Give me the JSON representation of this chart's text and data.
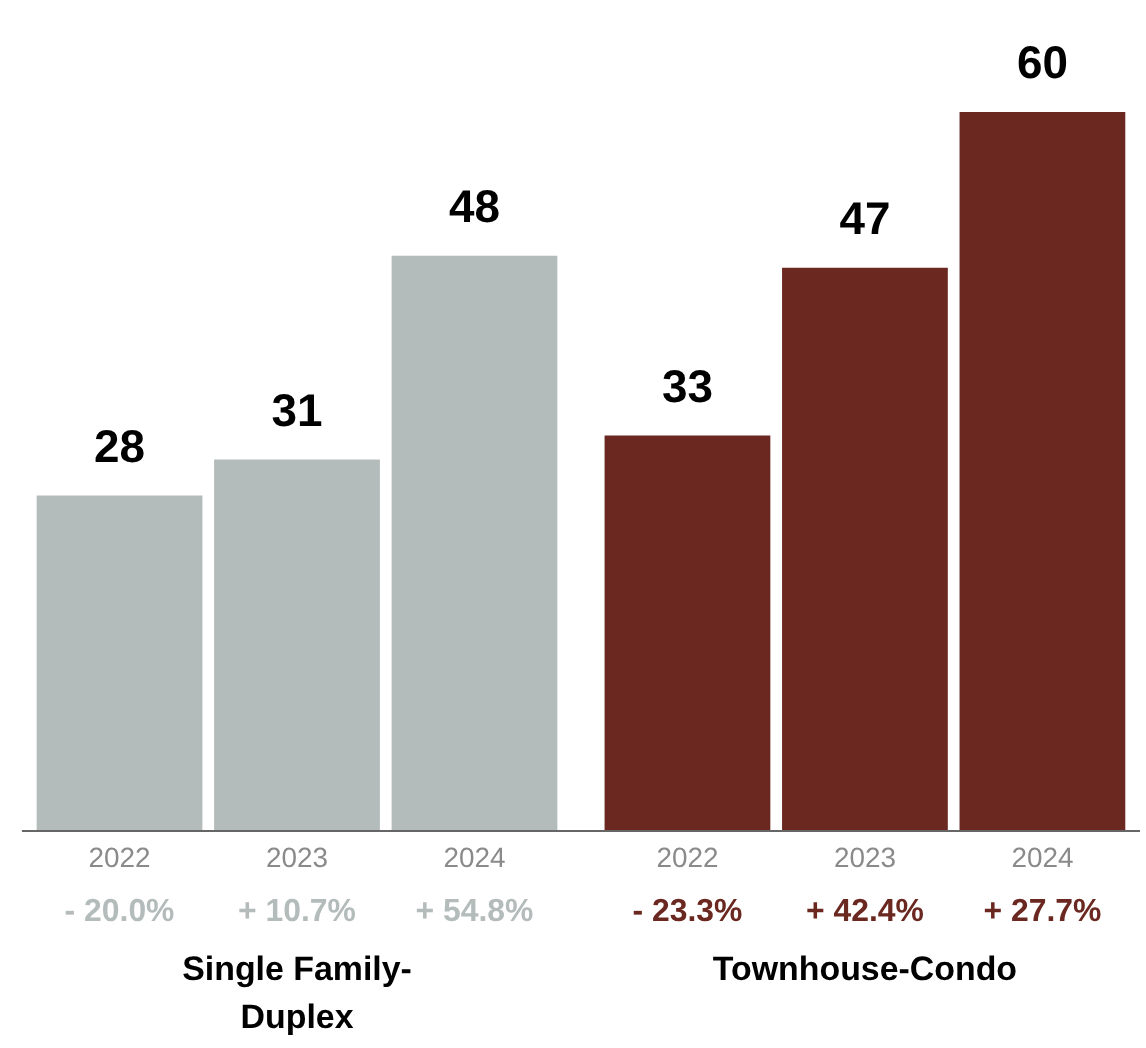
{
  "chart_data": {
    "type": "bar",
    "categories": [
      "2022",
      "2023",
      "2024",
      "2022",
      "2023",
      "2024"
    ],
    "series": [
      {
        "color": "#b4bbbb",
        "values": [
          28,
          31,
          48,
          null,
          null,
          null
        ]
      },
      {
        "color": "#6b2820",
        "values": [
          null,
          null,
          null,
          33,
          47,
          60
        ]
      }
    ],
    "data_labels": true,
    "annotations": [
      "- 20.0%",
      "+ 10.7%",
      "+ 54.8%",
      "- 23.3%",
      "+ 42.4%",
      "+ 27.7%",
      "Single Family-Duplex",
      "Townhouse-Condo"
    ]
  }
}
